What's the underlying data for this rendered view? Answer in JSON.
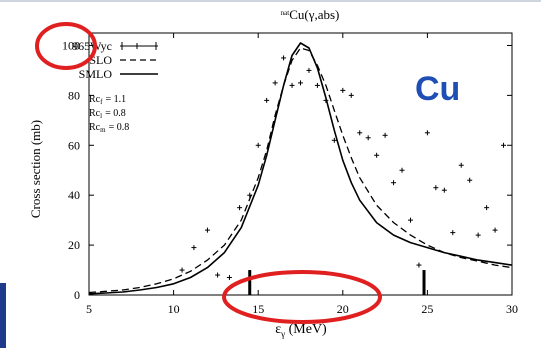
{
  "chart_data": {
    "type": "line",
    "title": "natCu(γ,abs)",
    "title_sup": "nat",
    "title_main": "Cu(γ,abs)",
    "xlabel": "εγ (MeV)",
    "xlabel_main": "ε",
    "xlabel_sub": "γ",
    "xlabel_unit": " (MeV)",
    "ylabel": "Cross section (mb)",
    "xlim": [
      5,
      30
    ],
    "ylim": [
      0,
      105
    ],
    "x_ticks": [
      5,
      10,
      15,
      20,
      25,
      30
    ],
    "y_ticks": [
      0,
      20,
      40,
      60,
      80,
      100
    ],
    "legend_placement": "top-left",
    "legend": [
      "965Wyc",
      "SLO",
      "SMLO"
    ],
    "params": [
      "Rcf = 1.1",
      "Rcl = 0.8",
      "Rcm = 0.8"
    ],
    "params_display": [
      {
        "base": "Rc",
        "sub": "f",
        "value": "= 1.1"
      },
      {
        "base": "Rc",
        "sub": "l",
        "value": "= 0.8"
      },
      {
        "base": "Rc",
        "sub": "m",
        "value": "= 0.8"
      }
    ],
    "element_label": "Cu",
    "element_label_color": "#1f4fb5",
    "highlight_color": "#e02020",
    "series": [
      {
        "name": "965Wyc",
        "style": "points",
        "x": [
          10.5,
          11.2,
          12.0,
          12.6,
          13.3,
          13.9,
          14.5,
          15.0,
          15.5,
          16.0,
          16.5,
          17.0,
          17.5,
          18.0,
          18.5,
          19.0,
          19.5,
          20.0,
          20.5,
          21.0,
          21.5,
          22.0,
          22.5,
          23.0,
          23.5,
          24.0,
          24.5,
          25.0,
          25.5,
          26.0,
          26.5,
          27.0,
          27.5,
          28.0,
          28.5,
          29.0,
          29.5
        ],
        "y": [
          10,
          19,
          26,
          8,
          7,
          35,
          40,
          60,
          78,
          85,
          95,
          84,
          85,
          90,
          84,
          78,
          62,
          82,
          80,
          65,
          63,
          56,
          64,
          45,
          50,
          30,
          12,
          65,
          43,
          42,
          25,
          52,
          46,
          24,
          35,
          26,
          60
        ]
      },
      {
        "name": "SLO",
        "style": "dashed",
        "x": [
          5,
          6,
          7,
          8,
          9,
          10,
          11,
          12,
          13,
          14,
          15,
          15.5,
          16,
          16.5,
          17,
          17.5,
          18,
          18.5,
          19,
          19.5,
          20,
          20.5,
          21,
          22,
          23,
          24,
          25,
          26,
          27,
          28,
          29,
          30
        ],
        "y": [
          1,
          1.5,
          2,
          3,
          4.5,
          6.5,
          9.5,
          14,
          20,
          30,
          47,
          58,
          72,
          84,
          94,
          99,
          98,
          92,
          84,
          74,
          64,
          55,
          47,
          36,
          29,
          24,
          20,
          17,
          15,
          13.5,
          12,
          11
        ]
      },
      {
        "name": "SMLO",
        "style": "solid",
        "x": [
          5,
          6,
          7,
          8,
          9,
          10,
          11,
          12,
          13,
          14,
          15,
          15.5,
          16,
          16.5,
          17,
          17.5,
          18,
          18.5,
          19,
          19.5,
          20,
          20.5,
          21,
          22,
          23,
          24,
          25,
          26,
          27,
          28,
          29,
          30
        ],
        "y": [
          0.5,
          0.8,
          1.2,
          2,
          3,
          4.5,
          7,
          11,
          17,
          27,
          44,
          56,
          70,
          84,
          96,
          101,
          99,
          91,
          79,
          66,
          54,
          45,
          38,
          29,
          24,
          21,
          19,
          17,
          15.5,
          14,
          13,
          12
        ]
      }
    ],
    "threshold_markers": [
      {
        "x": 14.5,
        "height": 10
      },
      {
        "x": 24.8,
        "height": 10
      }
    ],
    "annotations": [
      {
        "shape": "ellipse",
        "target": "y tick 100"
      },
      {
        "shape": "ellipse",
        "target": "x ticks 15-20"
      }
    ]
  }
}
